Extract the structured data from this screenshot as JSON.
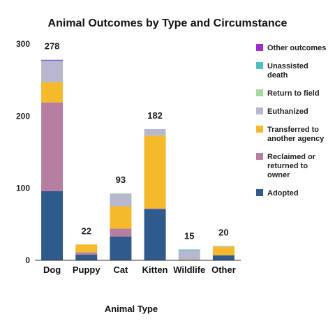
{
  "chart_data": {
    "type": "bar",
    "stacked": true,
    "title": "Animal Outcomes by Type and Circumstance",
    "xlabel": "Animal Type",
    "ylabel": "",
    "ylim": [
      0,
      300
    ],
    "yticks": [
      0,
      100,
      200,
      300
    ],
    "grid": false,
    "legend_position": "right",
    "categories": [
      "Dog",
      "Puppy",
      "Cat",
      "Kitten",
      "Wildlife",
      "Other"
    ],
    "totals": [
      278,
      22,
      93,
      182,
      15,
      20
    ],
    "series": [
      {
        "name": "Adopted",
        "color": "#2e5a8c",
        "values": [
          96,
          8,
          33,
          71,
          0,
          7
        ]
      },
      {
        "name": "Reclaimed or returned to owner",
        "color": "#b67fa2",
        "values": [
          123,
          3,
          11,
          1,
          0,
          0
        ]
      },
      {
        "name": "Transferred to another agency",
        "color": "#f5b92c",
        "values": [
          28,
          11,
          31,
          101,
          1,
          12
        ]
      },
      {
        "name": "Euthanized",
        "color": "#b7b8cf",
        "values": [
          29,
          0,
          17,
          9,
          13,
          1
        ]
      },
      {
        "name": "Return to field",
        "color": "#a9d9a3",
        "values": [
          0,
          0,
          1,
          0,
          0,
          0
        ]
      },
      {
        "name": "Unassisted death",
        "color": "#4fbfc4",
        "values": [
          1,
          0,
          0,
          0,
          1,
          0
        ]
      },
      {
        "name": "Other outcomes",
        "color": "#9c2ec9",
        "values": [
          1,
          0,
          0,
          0,
          0,
          0
        ]
      }
    ]
  }
}
